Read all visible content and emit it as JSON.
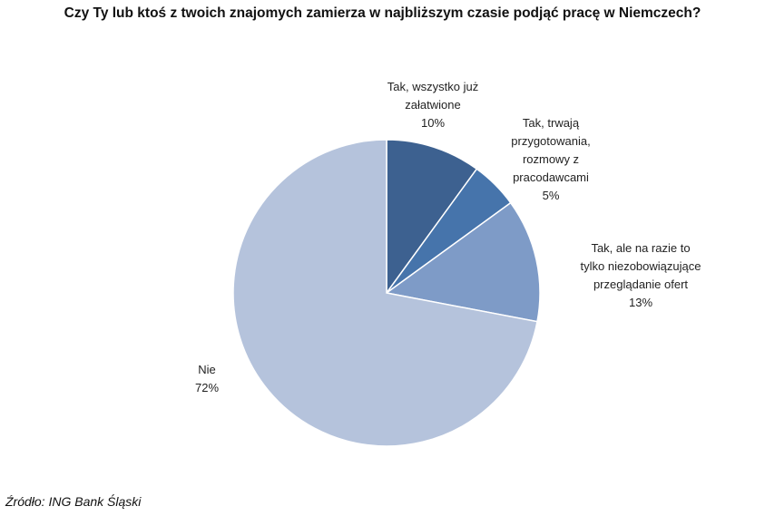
{
  "chart_data": {
    "type": "pie",
    "title": "Czy Ty lub ktoś z twoich znajomych zamierza w najbliższym czasie podjąć pracę w Niemczech?",
    "slices": [
      {
        "label": [
          "Tak, wszystko już",
          "załatwione"
        ],
        "value": 10,
        "value_label": "10%",
        "color": "#3D6190"
      },
      {
        "label": [
          "Tak, trwają",
          "przygotowania,",
          "rozmowy z",
          "pracodawcami"
        ],
        "value": 5,
        "value_label": "5%",
        "color": "#4674AB"
      },
      {
        "label": [
          "Tak, ale na razie to",
          "tylko niezobowiązujące",
          "przeglądanie ofert"
        ],
        "value": 13,
        "value_label": "13%",
        "color": "#7E9BC7"
      },
      {
        "label": [
          "Nie"
        ],
        "value": 72,
        "value_label": "72%",
        "color": "#B5C3DC"
      }
    ],
    "start": "12 o'clock, clockwise",
    "legend": "none (data labels)"
  },
  "source": "Źródło: ING Bank Śląski"
}
